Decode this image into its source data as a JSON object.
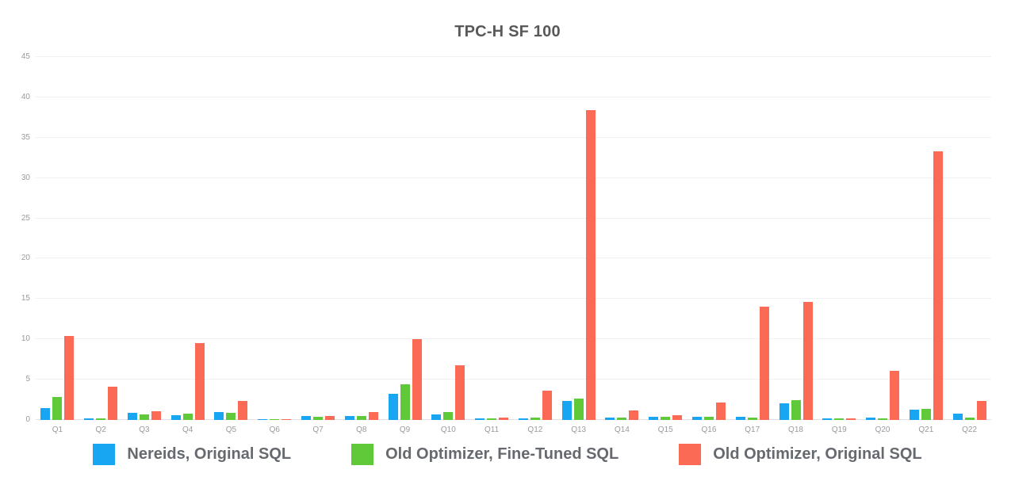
{
  "title": "TPC-H SF 100",
  "chart_data": {
    "type": "bar",
    "title": "TPC-H SF 100",
    "categories": [
      "Q1",
      "Q2",
      "Q3",
      "Q4",
      "Q5",
      "Q6",
      "Q7",
      "Q8",
      "Q9",
      "Q10",
      "Q11",
      "Q12",
      "Q13",
      "Q14",
      "Q15",
      "Q16",
      "Q17",
      "Q18",
      "Q19",
      "Q20",
      "Q21",
      "Q22"
    ],
    "series": [
      {
        "name": "Nereids, Original SQL",
        "color": "#18a6f2",
        "values": [
          1.5,
          0.2,
          0.85,
          0.6,
          0.95,
          0.1,
          0.5,
          0.5,
          3.2,
          0.7,
          0.15,
          0.2,
          2.4,
          0.25,
          0.35,
          0.4,
          0.4,
          2.1,
          0.2,
          0.25,
          1.3,
          0.75
        ]
      },
      {
        "name": "Old Optimizer, Fine-Tuned SQL",
        "color": "#5fc93a",
        "values": [
          2.9,
          0.15,
          0.65,
          0.8,
          0.85,
          0.1,
          0.4,
          0.5,
          4.4,
          1.0,
          0.15,
          0.3,
          2.65,
          0.25,
          0.4,
          0.4,
          0.3,
          2.45,
          0.2,
          0.2,
          1.4,
          0.3
        ]
      },
      {
        "name": "Old Optimizer, Original SQL",
        "color": "#fb6a55",
        "values": [
          10.4,
          4.1,
          1.1,
          9.5,
          2.35,
          0.1,
          0.5,
          0.95,
          10.0,
          6.8,
          0.25,
          3.6,
          38.4,
          1.2,
          0.6,
          2.2,
          14.1,
          14.6,
          0.2,
          6.1,
          33.3,
          2.4
        ]
      }
    ],
    "ylim": [
      0,
      45
    ],
    "yticks": [
      0,
      5,
      10,
      15,
      20,
      25,
      30,
      35,
      40,
      45
    ],
    "xlabel": "",
    "ylabel": "",
    "grid": true,
    "legend_position": "bottom"
  }
}
